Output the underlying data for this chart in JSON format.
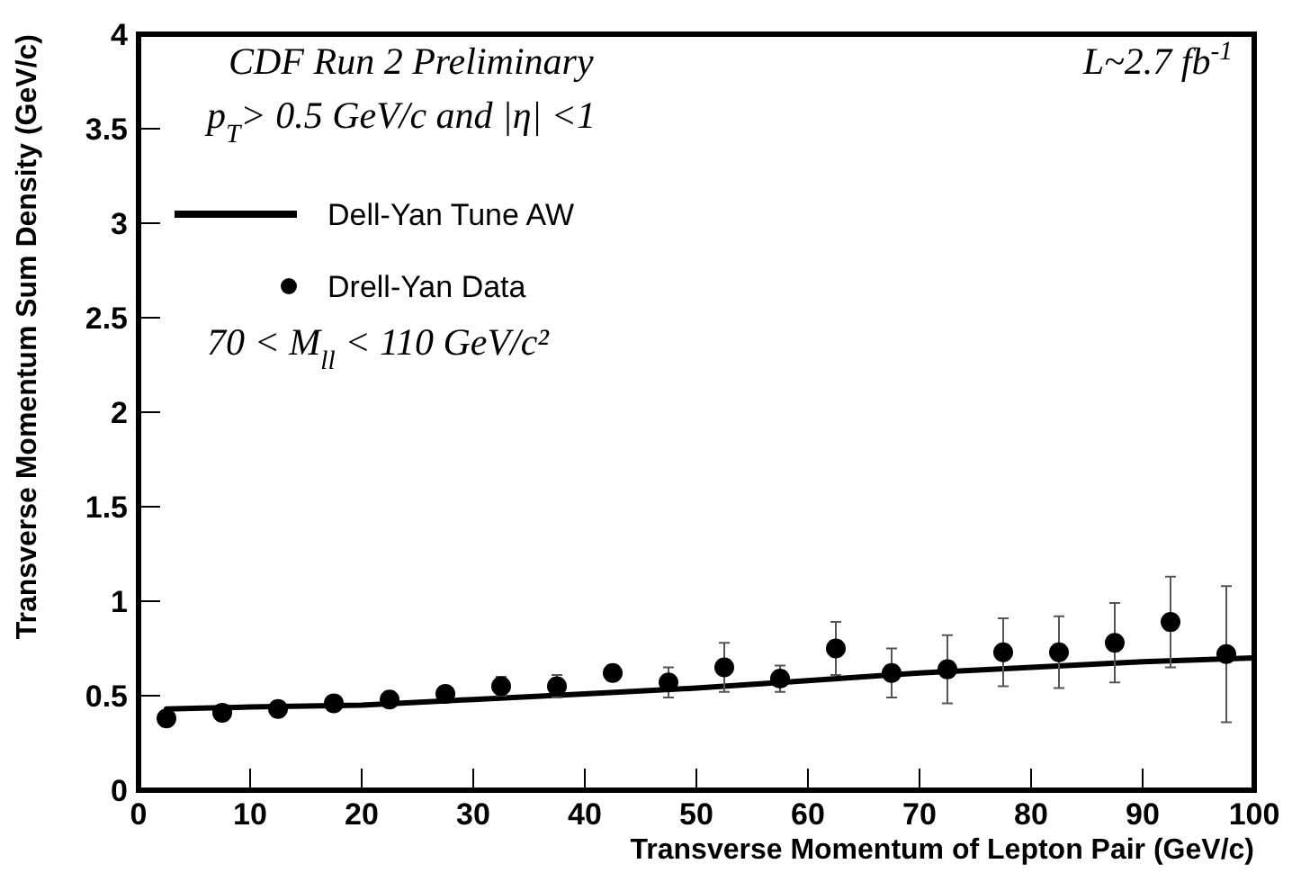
{
  "chart_data": {
    "type": "scatter",
    "xlabel": "Transverse Momentum of Lepton Pair (GeV/c)",
    "ylabel": "Transverse Momentum Sum Density (GeV/c)",
    "annotations": [
      "CDF Run 2 Preliminary",
      "p$_{T}$> 0.5  GeV/c and |η| <1",
      "70 < M$_{ll}$ < 110 GeV/c²",
      "L~2.7 fb$^{-1}$"
    ],
    "series": [
      {
        "name": "Dell-Yan Tune AW",
        "type": "line",
        "color": "#000000",
        "marker": "none",
        "x": [
          2.5,
          10,
          20,
          30,
          40,
          50,
          60,
          70,
          80,
          90,
          100
        ],
        "values": [
          0.43,
          0.44,
          0.45,
          0.48,
          0.51,
          0.54,
          0.58,
          0.62,
          0.65,
          0.68,
          0.7
        ]
      },
      {
        "name": "Drell-Yan Data",
        "color": "#000000",
        "marker": "circle",
        "x": [
          2.5,
          7.5,
          12.5,
          17.5,
          22.5,
          27.5,
          32.5,
          37.5,
          42.5,
          47.5,
          52.5,
          57.5,
          62.5,
          67.5,
          72.5,
          77.5,
          82.5,
          87.5,
          92.5,
          97.5
        ],
        "values": [
          0.38,
          0.41,
          0.43,
          0.46,
          0.48,
          0.51,
          0.55,
          0.55,
          0.62,
          0.57,
          0.65,
          0.59,
          0.75,
          0.62,
          0.64,
          0.73,
          0.73,
          0.78,
          0.89,
          0.72
        ],
        "errors": [
          null,
          null,
          null,
          null,
          0.04,
          null,
          0.05,
          0.06,
          0.04,
          0.08,
          0.13,
          0.07,
          0.14,
          0.13,
          0.18,
          0.18,
          0.19,
          0.21,
          0.24,
          0.36
        ]
      }
    ],
    "xlim": [
      0,
      100
    ],
    "xticks": [
      0,
      10,
      20,
      30,
      40,
      50,
      60,
      70,
      80,
      90,
      100
    ],
    "ylim": [
      0,
      4
    ],
    "yticks": [
      0,
      0.5,
      1,
      1.5,
      2,
      2.5,
      3,
      3.5,
      4
    ],
    "legend": "top left",
    "grid": false
  }
}
